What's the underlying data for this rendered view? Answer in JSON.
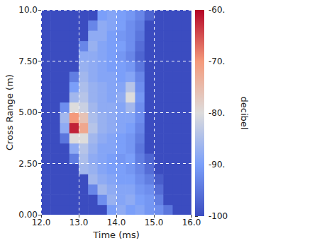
{
  "chart_data": {
    "type": "heatmap",
    "x_label": "Time (ms)",
    "y_label": "Cross Range (m)",
    "grid": true,
    "xlim": [
      12,
      16
    ],
    "xticks": [
      {
        "value": 12,
        "label": "12.0"
      },
      {
        "value": 13,
        "label": "13.0"
      },
      {
        "value": 14,
        "label": "14.0"
      },
      {
        "value": 15,
        "label": "15.0"
      },
      {
        "value": 16,
        "label": "16.0"
      }
    ],
    "ylim": [
      0,
      10
    ],
    "yticks": [
      {
        "value": 0,
        "label": "0.00"
      },
      {
        "value": 2.5,
        "label": "2.50"
      },
      {
        "value": 5,
        "label": "5.00"
      },
      {
        "value": 7.5,
        "label": "7.50"
      },
      {
        "value": 10,
        "label": "10.0"
      }
    ],
    "x": [
      12.125,
      12.375,
      12.625,
      12.875,
      13.125,
      13.375,
      13.625,
      13.875,
      14.125,
      14.375,
      14.625,
      14.875,
      15.125,
      15.375,
      15.625,
      15.875
    ],
    "y": [
      0.25,
      0.75,
      1.25,
      1.75,
      2.25,
      2.75,
      3.25,
      3.75,
      4.25,
      4.75,
      5.25,
      5.75,
      6.25,
      6.75,
      7.25,
      7.75,
      8.25,
      8.75,
      9.25,
      9.75
    ],
    "values": [
      [
        -100,
        -100,
        -100,
        -100,
        -100,
        -100,
        -100,
        -90,
        -88,
        -90,
        -89,
        -91,
        -92,
        -95,
        -100,
        -100
      ],
      [
        -100,
        -100,
        -100,
        -100,
        -100,
        -100,
        -92,
        -87,
        -89,
        -88,
        -90,
        -91,
        -94,
        -100,
        -100,
        -100
      ],
      [
        -100,
        -100,
        -100,
        -100,
        -100,
        -93,
        -86,
        -88,
        -89,
        -89,
        -91,
        -92,
        -96,
        -100,
        -100,
        -100
      ],
      [
        -100,
        -100,
        -100,
        -100,
        -100,
        -86,
        -88,
        -89,
        -90,
        -90,
        -92,
        -94,
        -98,
        -100,
        -100,
        -100
      ],
      [
        -100,
        -100,
        -100,
        -100,
        -86,
        -87,
        -89,
        -90,
        -90,
        -91,
        -93,
        -96,
        -100,
        -100,
        -100,
        -100
      ],
      [
        -100,
        -100,
        -100,
        -94,
        -85,
        -88,
        -89,
        -90,
        -91,
        -90,
        -94,
        -97,
        -100,
        -100,
        -100,
        -100
      ],
      [
        -100,
        -100,
        -100,
        -88,
        -84,
        -87,
        -89,
        -89,
        -90,
        -91,
        -95,
        -100,
        -100,
        -100,
        -100,
        -100
      ],
      [
        -100,
        -100,
        -95,
        -80,
        -80,
        -86,
        -88,
        -89,
        -90,
        -91,
        -94,
        -100,
        -100,
        -100,
        -100,
        -100
      ],
      [
        -100,
        -100,
        -88,
        -62,
        -72,
        -84,
        -87,
        -88,
        -89,
        -90,
        -93,
        -100,
        -100,
        -100,
        -100,
        -100
      ],
      [
        -100,
        -100,
        -86,
        -70,
        -76,
        -85,
        -87,
        -88,
        -89,
        -89,
        -92,
        -100,
        -100,
        -100,
        -100,
        -100
      ],
      [
        -100,
        -100,
        -92,
        -80,
        -82,
        -86,
        -88,
        -88,
        -89,
        -86,
        -92,
        -100,
        -100,
        -100,
        -100,
        -100
      ],
      [
        -100,
        -100,
        -100,
        -86,
        -84,
        -87,
        -88,
        -89,
        -88,
        -80,
        -91,
        -100,
        -100,
        -100,
        -100,
        -100
      ],
      [
        -100,
        -100,
        -100,
        -90,
        -85,
        -87,
        -88,
        -89,
        -89,
        -84,
        -92,
        -100,
        -100,
        -100,
        -100,
        -100
      ],
      [
        -100,
        -100,
        -100,
        -94,
        -86,
        -88,
        -89,
        -89,
        -90,
        -89,
        -93,
        -100,
        -100,
        -100,
        -100,
        -100
      ],
      [
        -100,
        -100,
        -100,
        -100,
        -87,
        -88,
        -89,
        -90,
        -90,
        -91,
        -95,
        -100,
        -100,
        -100,
        -100,
        -100
      ],
      [
        -100,
        -100,
        -100,
        -100,
        -88,
        -88,
        -89,
        -90,
        -91,
        -93,
        -97,
        -100,
        -100,
        -100,
        -100,
        -100
      ],
      [
        -100,
        -100,
        -100,
        -100,
        -93,
        -87,
        -89,
        -90,
        -90,
        -92,
        -96,
        -100,
        -100,
        -100,
        -100,
        -100
      ],
      [
        -100,
        -100,
        -100,
        -100,
        -100,
        -88,
        -88,
        -90,
        -91,
        -92,
        -95,
        -100,
        -100,
        -100,
        -100,
        -100
      ],
      [
        -100,
        -100,
        -100,
        -100,
        -100,
        -93,
        -88,
        -89,
        -90,
        -92,
        -94,
        -100,
        -100,
        -100,
        -100,
        -100
      ],
      [
        -100,
        -100,
        -100,
        -100,
        -100,
        -100,
        -90,
        -89,
        -90,
        -91,
        -93,
        -97,
        -100,
        -100,
        -100,
        -100
      ]
    ],
    "colorbar": {
      "label": "decibel",
      "range": [
        -100,
        -60
      ],
      "ticks": [
        {
          "value": -60,
          "label": "-60."
        },
        {
          "value": -70,
          "label": "-70."
        },
        {
          "value": -80,
          "label": "-80."
        },
        {
          "value": -90,
          "label": "-90."
        },
        -100
      ]
    }
  }
}
